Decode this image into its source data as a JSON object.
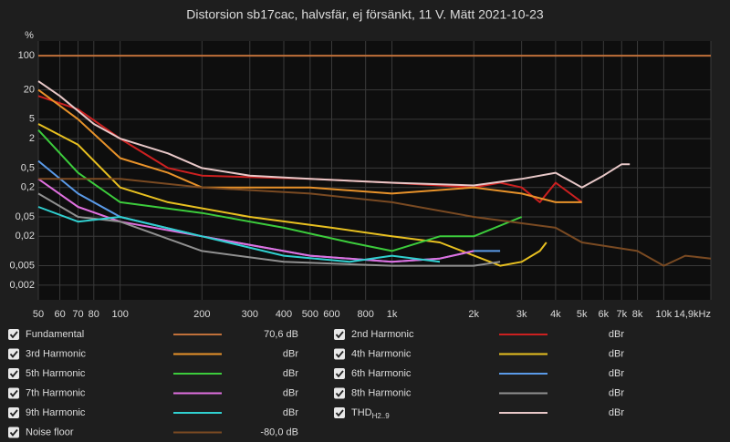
{
  "chart_data": {
    "type": "line",
    "title": "Distorsion sb17cac, halvsfär, ej försänkt, 11 V. Mätt 2021-10-23",
    "y_label": "%",
    "log_x": true,
    "log_y": true,
    "grid": true,
    "xlim": [
      50,
      14900
    ],
    "ylim": [
      0.001,
      200
    ],
    "xticks": [
      50,
      60,
      70,
      80,
      100,
      200,
      300,
      400,
      500,
      600,
      800,
      {
        "value": 1000,
        "label": "1k"
      },
      {
        "value": 2000,
        "label": "2k"
      },
      {
        "value": 3000,
        "label": "3k"
      },
      {
        "value": 4000,
        "label": "4k"
      },
      {
        "value": 5000,
        "label": "5k"
      },
      {
        "value": 6000,
        "label": "6k"
      },
      {
        "value": 7000,
        "label": "7k"
      },
      {
        "value": 8000,
        "label": "8k"
      },
      {
        "value": 10000,
        "label": "10k"
      },
      {
        "value": 14900,
        "label": "14,9kHz"
      }
    ],
    "yticks": [
      100,
      20,
      5,
      2,
      {
        "value": 0.5,
        "label": "0,5"
      },
      {
        "value": 0.2,
        "label": "0,2"
      },
      {
        "value": 0.05,
        "label": "0,05"
      },
      {
        "value": 0.02,
        "label": "0,02"
      },
      {
        "value": 0.005,
        "label": "0,005"
      },
      {
        "value": 0.002,
        "label": "0,002"
      }
    ],
    "series": [
      {
        "name": "Fundamental",
        "readout": "70,6 dB",
        "color": "#c0703a",
        "x": [
          50,
          14900
        ],
        "values": [
          100,
          100
        ]
      },
      {
        "name": "2nd Harmonic",
        "readout": "dBr",
        "color": "#cc2020",
        "x": [
          50,
          70,
          100,
          150,
          200,
          500,
          1000,
          2000,
          2500,
          3000,
          3500,
          4000,
          5000
        ],
        "values": [
          15,
          8,
          2,
          0.5,
          0.35,
          0.3,
          0.25,
          0.2,
          0.25,
          0.2,
          0.1,
          0.25,
          0.1
        ]
      },
      {
        "name": "3rd Harmonic",
        "readout": "dBr",
        "color": "#e8922a",
        "x": [
          50,
          70,
          100,
          150,
          200,
          500,
          1000,
          2000,
          3000,
          4000,
          5000
        ],
        "values": [
          20,
          5,
          0.8,
          0.4,
          0.2,
          0.2,
          0.15,
          0.2,
          0.15,
          0.1,
          0.1
        ]
      },
      {
        "name": "4th Harmonic",
        "readout": "dBr",
        "color": "#e8c020",
        "x": [
          50,
          70,
          100,
          150,
          300,
          600,
          1000,
          1500,
          2500,
          3000,
          3500,
          3700
        ],
        "values": [
          4,
          1.5,
          0.2,
          0.1,
          0.05,
          0.03,
          0.02,
          0.015,
          0.005,
          0.006,
          0.01,
          0.015
        ]
      },
      {
        "name": "5th Harmonic",
        "readout": "dBr",
        "color": "#3ccc3c",
        "x": [
          50,
          70,
          100,
          200,
          400,
          700,
          1000,
          1500,
          2000,
          3000
        ],
        "values": [
          3,
          0.4,
          0.1,
          0.06,
          0.03,
          0.015,
          0.01,
          0.02,
          0.02,
          0.05
        ]
      },
      {
        "name": "6th Harmonic",
        "readout": "dBr",
        "color": "#5a9ae8",
        "x": [
          50,
          70,
          100,
          200,
          500,
          1000,
          1500,
          2000,
          2500
        ],
        "values": [
          0.7,
          0.15,
          0.05,
          0.02,
          0.008,
          0.006,
          0.007,
          0.01,
          0.01
        ]
      },
      {
        "name": "7th Harmonic",
        "readout": "dBr",
        "color": "#e070e0",
        "x": [
          50,
          70,
          100,
          200,
          500,
          1000,
          1500,
          2000
        ],
        "values": [
          0.3,
          0.08,
          0.04,
          0.02,
          0.008,
          0.006,
          0.007,
          0.01
        ]
      },
      {
        "name": "8th Harmonic",
        "readout": "dBr",
        "color": "#909090",
        "x": [
          50,
          70,
          100,
          200,
          400,
          1000,
          2000,
          2500
        ],
        "values": [
          0.15,
          0.05,
          0.04,
          0.01,
          0.006,
          0.005,
          0.005,
          0.006
        ]
      },
      {
        "name": "9th Harmonic",
        "readout": "dBr",
        "color": "#30d0d0",
        "x": [
          50,
          70,
          100,
          200,
          400,
          700,
          1000,
          1500
        ],
        "values": [
          0.08,
          0.04,
          0.05,
          0.02,
          0.008,
          0.006,
          0.008,
          0.006
        ]
      },
      {
        "name": "THD",
        "name_sub": "H2..9",
        "readout": "dBr",
        "color": "#e8c8c8",
        "x": [
          50,
          60,
          80,
          100,
          150,
          200,
          300,
          500,
          1000,
          2000,
          3000,
          4000,
          5000,
          6000,
          7000,
          7500
        ],
        "values": [
          30,
          15,
          4,
          2,
          1,
          0.5,
          0.35,
          0.3,
          0.25,
          0.22,
          0.3,
          0.4,
          0.2,
          0.35,
          0.6,
          0.6
        ]
      },
      {
        "name": "Noise floor",
        "readout": "-80,0 dB",
        "color": "#7a4a22",
        "x": [
          50,
          100,
          200,
          500,
          1000,
          2000,
          4000,
          5000,
          8000,
          10000,
          12000,
          14900
        ],
        "values": [
          0.3,
          0.3,
          0.2,
          0.15,
          0.1,
          0.05,
          0.03,
          0.015,
          0.01,
          0.005,
          0.008,
          0.007
        ]
      }
    ]
  }
}
